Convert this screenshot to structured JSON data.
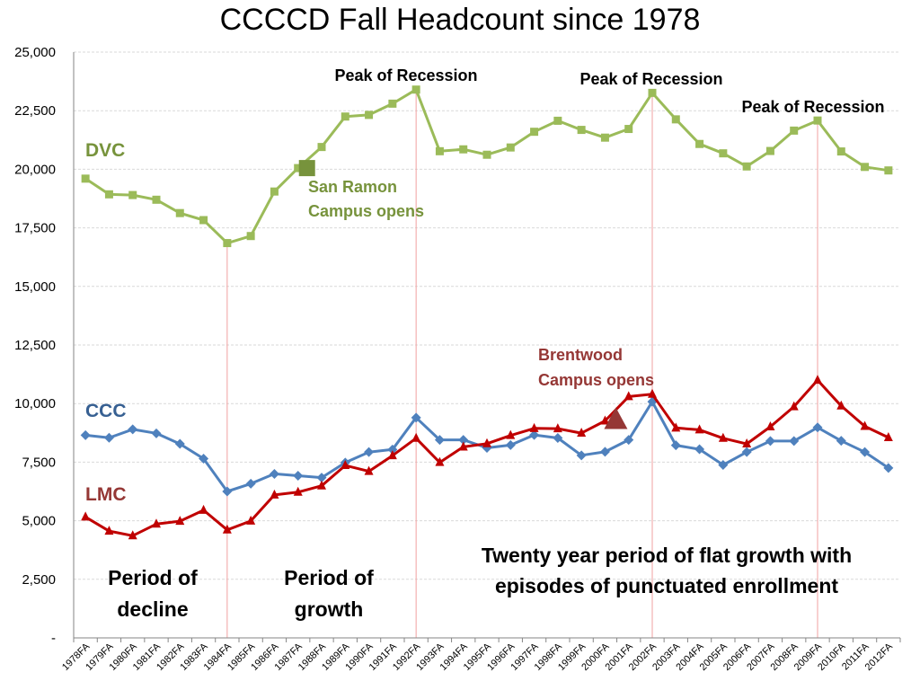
{
  "chart_data": {
    "type": "line",
    "title": "CCCCD Fall Headcount since 1978",
    "xlabel": "",
    "ylabel": "",
    "ylim": [
      0,
      25000
    ],
    "yticks": [
      0,
      2500,
      5000,
      7500,
      10000,
      12500,
      15000,
      17500,
      20000,
      22500,
      25000
    ],
    "ytick_labels": [
      "-",
      "2,500",
      "5,000",
      "7,500",
      "10,000",
      "12,500",
      "15,000",
      "17,500",
      "20,000",
      "22,500",
      "25,000"
    ],
    "grid": true,
    "categories": [
      "1978FA",
      "1979FA",
      "1980FA",
      "1981FA",
      "1982FA",
      "1983FA",
      "1984FA",
      "1985FA",
      "1986FA",
      "1987FA",
      "1988FA",
      "1989FA",
      "1990FA",
      "1991FA",
      "1992FA",
      "1993FA",
      "1994FA",
      "1995FA",
      "1996FA",
      "1997FA",
      "1998FA",
      "1999FA",
      "2000FA",
      "2001FA",
      "2002FA",
      "2003FA",
      "2004FA",
      "2005FA",
      "2006FA",
      "2007FA",
      "2008FA",
      "2009FA",
      "2010FA",
      "2011FA",
      "2012FA"
    ],
    "series": [
      {
        "name": "DVC",
        "color": "#9BBB59",
        "label_color": "#77933C",
        "marker": "square",
        "values": [
          19600,
          18930,
          18900,
          18700,
          18130,
          17830,
          16850,
          17150,
          19050,
          20050,
          20950,
          22250,
          22320,
          22800,
          23400,
          20770,
          20850,
          20620,
          20930,
          21600,
          22070,
          21680,
          21350,
          21720,
          23260,
          22130,
          21080,
          20680,
          20120,
          20780,
          21650,
          22080,
          20760,
          20100,
          19950
        ]
      },
      {
        "name": "CCC",
        "color": "#4F81BD",
        "label_color": "#376092",
        "marker": "diamond",
        "values": [
          8650,
          8540,
          8900,
          8730,
          8280,
          7650,
          6250,
          6580,
          7000,
          6920,
          6840,
          7480,
          7930,
          8040,
          9400,
          8450,
          8450,
          8110,
          8230,
          8660,
          8530,
          7790,
          7940,
          8450,
          10080,
          8220,
          8050,
          7380,
          7930,
          8400,
          8400,
          8980,
          8410,
          7930,
          7250
        ]
      },
      {
        "name": "LMC",
        "color": "#C00000",
        "label_color": "#953735",
        "marker": "triangle",
        "values": [
          5160,
          4560,
          4360,
          4860,
          4980,
          5450,
          4610,
          4990,
          6100,
          6220,
          6490,
          7360,
          7110,
          7780,
          8520,
          7490,
          8150,
          8290,
          8640,
          8940,
          8930,
          8740,
          9260,
          10300,
          10400,
          8960,
          8880,
          8520,
          8280,
          9010,
          9870,
          11000,
          9900,
          9030,
          8550
        ]
      }
    ],
    "annotations": {
      "peak_label": "Peak of Recession",
      "san_ramon": [
        "San Ramon",
        "Campus opens"
      ],
      "brentwood": [
        "Brentwood",
        "Campus opens"
      ],
      "decline": [
        "Period of",
        "decline"
      ],
      "growth": [
        "Period of",
        "growth"
      ],
      "flat": [
        "Twenty year period of flat growth with",
        "episodes of punctuated enrollment"
      ]
    },
    "markers": {
      "san_ramon": {
        "x": "1987FA",
        "y": 20050
      },
      "brentwood": {
        "x": "2000FA",
        "y": 9300
      }
    },
    "vlines": [
      "1984FA",
      "1992FA",
      "2002FA",
      "2009FA"
    ]
  }
}
